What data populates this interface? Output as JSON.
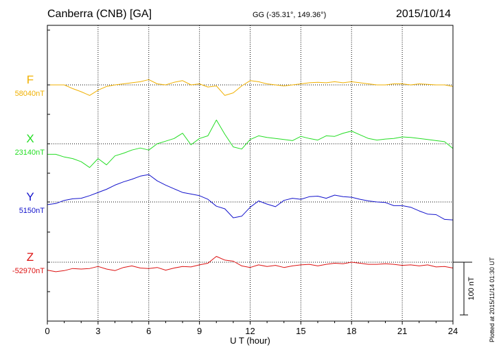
{
  "header": {
    "station": "Canberra (CNB)  [GA]",
    "coords": "GG (-35.31°, 149.36°)",
    "date": "2015/10/14"
  },
  "footer": {
    "plotted": "Plotted at 2015/11/14 01:30 UT"
  },
  "chart_data": {
    "type": "line",
    "title": "Canberra (CNB)  [GA]",
    "xlabel": "U T (hour)",
    "ylabel": "",
    "xlim": [
      0,
      24
    ],
    "x_ticks": [
      "0",
      "3",
      "6",
      "9",
      "12",
      "15",
      "18",
      "21",
      "24"
    ],
    "grid": true,
    "units": "nT",
    "scale_bar": {
      "label": "100 nT",
      "value_nT": 100
    },
    "x": [
      0,
      0.5,
      1,
      1.5,
      2,
      2.5,
      3,
      3.5,
      4,
      4.5,
      5,
      5.5,
      6,
      6.5,
      7,
      7.5,
      8,
      8.5,
      9,
      9.5,
      10,
      10.5,
      11,
      11.5,
      12,
      12.5,
      13,
      13.5,
      14,
      14.5,
      15,
      15.5,
      16,
      16.5,
      17,
      17.5,
      18,
      18.5,
      19,
      19.5,
      20,
      20.5,
      21,
      21.5,
      22,
      22.5,
      23,
      23.5,
      24
    ],
    "series": [
      {
        "name": "F",
        "baseline_label": "58040nT",
        "baseline_nT": 58040,
        "color": "#f0b000",
        "values": [
          58040,
          58040,
          58040,
          58033,
          58027,
          58020,
          58030,
          58037,
          58040,
          58042,
          58044,
          58046,
          58050,
          58042,
          58040,
          58045,
          58048,
          58040,
          58042,
          58036,
          58038,
          58020,
          58025,
          58038,
          58048,
          58046,
          58042,
          58040,
          58038,
          58040,
          58042,
          58044,
          58045,
          58044,
          58046,
          58044,
          58046,
          58044,
          58042,
          58040,
          58040,
          58042,
          58042,
          58040,
          58042,
          58041,
          58040,
          58040,
          58037
        ]
      },
      {
        "name": "X",
        "baseline_label": "23140nT",
        "baseline_nT": 23140,
        "color": "#22dd22",
        "values": [
          23120,
          23120,
          23115,
          23112,
          23106,
          23095,
          23112,
          23100,
          23117,
          23122,
          23128,
          23132,
          23128,
          23140,
          23145,
          23150,
          23160,
          23138,
          23150,
          23155,
          23185,
          23158,
          23134,
          23130,
          23148,
          23155,
          23152,
          23150,
          23148,
          23146,
          23154,
          23150,
          23147,
          23155,
          23154,
          23160,
          23164,
          23157,
          23150,
          23147,
          23149,
          23150,
          23153,
          23152,
          23150,
          23148,
          23146,
          23144,
          23131
        ]
      },
      {
        "name": "Y",
        "baseline_label": "5150nT",
        "baseline_nT": 5150,
        "color": "#1111cc",
        "values": [
          5145,
          5147,
          5153,
          5156,
          5157,
          5162,
          5168,
          5174,
          5182,
          5188,
          5193,
          5199,
          5202,
          5190,
          5182,
          5175,
          5168,
          5165,
          5162,
          5155,
          5142,
          5137,
          5120,
          5123,
          5140,
          5152,
          5146,
          5141,
          5153,
          5157,
          5155,
          5160,
          5161,
          5157,
          5163,
          5160,
          5159,
          5155,
          5152,
          5150,
          5149,
          5143,
          5143,
          5140,
          5133,
          5127,
          5126,
          5117,
          5116
        ]
      },
      {
        "name": "Z",
        "baseline_label": "-52970nT",
        "baseline_nT": -52970,
        "color": "#dd1111",
        "values": [
          -52985,
          -52988,
          -52986,
          -52982,
          -52983,
          -52982,
          -52978,
          -52983,
          -52986,
          -52980,
          -52977,
          -52981,
          -52982,
          -52980,
          -52985,
          -52981,
          -52978,
          -52979,
          -52975,
          -52972,
          -52959,
          -52966,
          -52968,
          -52977,
          -52980,
          -52975,
          -52978,
          -52976,
          -52980,
          -52977,
          -52975,
          -52974,
          -52977,
          -52974,
          -52972,
          -52973,
          -52970,
          -52972,
          -52974,
          -52974,
          -52973,
          -52974,
          -52976,
          -52975,
          -52977,
          -52975,
          -52979,
          -52978,
          -52981
        ]
      }
    ]
  }
}
